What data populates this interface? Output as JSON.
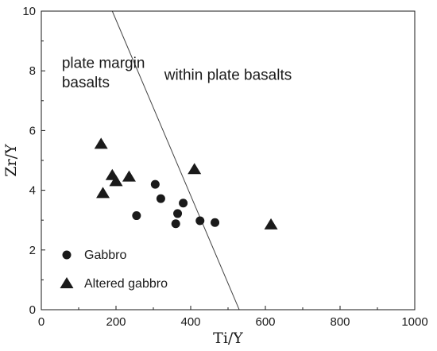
{
  "chart_data": {
    "type": "scatter",
    "xlabel": "Ti/Y",
    "ylabel": "Zr/Y",
    "xlim": [
      0,
      1000
    ],
    "ylim": [
      0,
      10
    ],
    "x_ticks": [
      0,
      200,
      400,
      600,
      800,
      1000
    ],
    "y_ticks": [
      0,
      2,
      4,
      6,
      8,
      10
    ],
    "x_tick_labels": [
      "0",
      "200",
      "400",
      "600",
      "800",
      "1000"
    ],
    "y_tick_labels": [
      "0",
      "2",
      "4",
      "6",
      "8",
      "10"
    ],
    "grid": false,
    "legend_position": "bottom-left",
    "boundary_line": {
      "x": [
        190,
        530
      ],
      "y": [
        10,
        0
      ]
    },
    "annotations": [
      {
        "text": "plate margin",
        "x": 55,
        "y": 8.1
      },
      {
        "text": "basalts",
        "x": 55,
        "y": 7.45
      },
      {
        "text": "within plate basalts",
        "x": 500,
        "y": 7.7
      }
    ],
    "series": [
      {
        "name": "Gabbro",
        "marker": "circle",
        "color": "#1a1a1a",
        "x": [
          255,
          305,
          320,
          360,
          365,
          380,
          425,
          465
        ],
        "y": [
          3.15,
          4.2,
          3.72,
          2.88,
          3.22,
          3.57,
          2.98,
          2.92
        ]
      },
      {
        "name": "Altered gabbro",
        "marker": "triangle",
        "color": "#1a1a1a",
        "x": [
          160,
          165,
          190,
          200,
          235,
          410,
          615
        ],
        "y": [
          5.55,
          3.9,
          4.5,
          4.3,
          4.45,
          4.7,
          2.85
        ]
      }
    ]
  }
}
